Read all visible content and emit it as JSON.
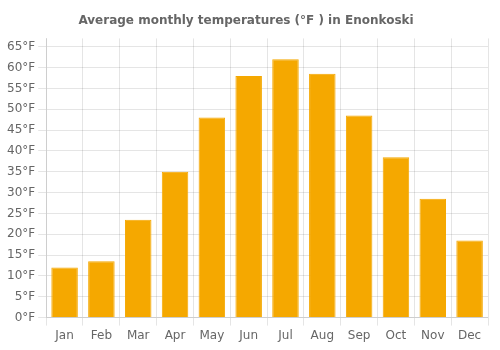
{
  "chart_data": {
    "type": "bar",
    "title": "Average monthly temperatures (°F ) in Enonkoski",
    "categories": [
      "Jan",
      "Feb",
      "Mar",
      "Apr",
      "May",
      "Jun",
      "Jul",
      "Aug",
      "Sep",
      "Oct",
      "Nov",
      "Dec"
    ],
    "values": [
      12.0,
      13.5,
      23.5,
      35.0,
      48.0,
      58.0,
      62.0,
      58.5,
      48.5,
      38.5,
      28.5,
      18.5
    ],
    "color": "#F5A800",
    "ylim": [
      0,
      67
    ],
    "yticks": [
      {
        "value": 0,
        "label": "0°F"
      },
      {
        "value": 5,
        "label": "5°F"
      },
      {
        "value": 10,
        "label": "10°F"
      },
      {
        "value": 15,
        "label": "15°F"
      },
      {
        "value": 20,
        "label": "20°F"
      },
      {
        "value": 25,
        "label": "25°F"
      },
      {
        "value": 30,
        "label": "30°F"
      },
      {
        "value": 35,
        "label": "35°F"
      },
      {
        "value": 40,
        "label": "40°F"
      },
      {
        "value": 45,
        "label": "45°F"
      },
      {
        "value": 50,
        "label": "50°F"
      },
      {
        "value": 55,
        "label": "55°F"
      },
      {
        "value": 60,
        "label": "60°F"
      },
      {
        "value": 65,
        "label": "65°F"
      }
    ],
    "grid": true
  }
}
